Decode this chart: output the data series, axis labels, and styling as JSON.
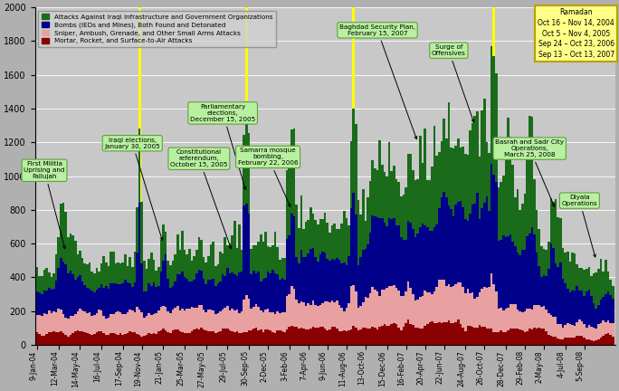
{
  "legend_labels": [
    "Attacks Against Iraqi Infrastructure and Government Organizations",
    "Bombs (IEDs and Mines), Both Found and Detonated",
    "Sniper, Ambush, Grenade, and Other Small Arms Attacks",
    "Mortar, Rocket, and Surface-to-Air Attacks"
  ],
  "colors_green": "#1a6b1a",
  "colors_blue": "#00008b",
  "colors_pink": "#e8a0a0",
  "colors_dred": "#8b0000",
  "background_color": "#b0b0b0",
  "plot_bg_color": "#c8c8c8",
  "ylim": [
    0,
    2000
  ],
  "yticks": [
    0,
    200,
    400,
    600,
    800,
    1000,
    1200,
    1400,
    1600,
    1800,
    2000
  ],
  "tick_labels": [
    "9-Jan-04",
    "12-Mar-04",
    "14-May-04",
    "16-Jul-04",
    "17-Sep-04",
    "19-Nov-04",
    "21-Jan-05",
    "25-Mar-05",
    "27-May-05",
    "29-Jul-05",
    "30-Sep-05",
    "2-Dec-05",
    "3-Feb-06",
    "7-Apr-06",
    "9-Jun-06",
    "11-Aug-06",
    "13-Oct-06",
    "15-Dec-06",
    "16-Feb-07",
    "20-Apr-07",
    "22-Jun-07",
    "24-Aug-07",
    "26-Oct-07",
    "28-Dec-07",
    "29-Feb-08",
    "2-May-08",
    "4-Jul-08",
    "5-Sep-08"
  ],
  "tick_positions": [
    0,
    9,
    18,
    27,
    36,
    44,
    53,
    62,
    71,
    80,
    89,
    97,
    106,
    114,
    122,
    130,
    138,
    147,
    155,
    163,
    171,
    180,
    188,
    197,
    205,
    213,
    222,
    230
  ],
  "yellow_bar_indices": [
    43,
    88,
    133,
    192
  ],
  "n_weeks": 243
}
